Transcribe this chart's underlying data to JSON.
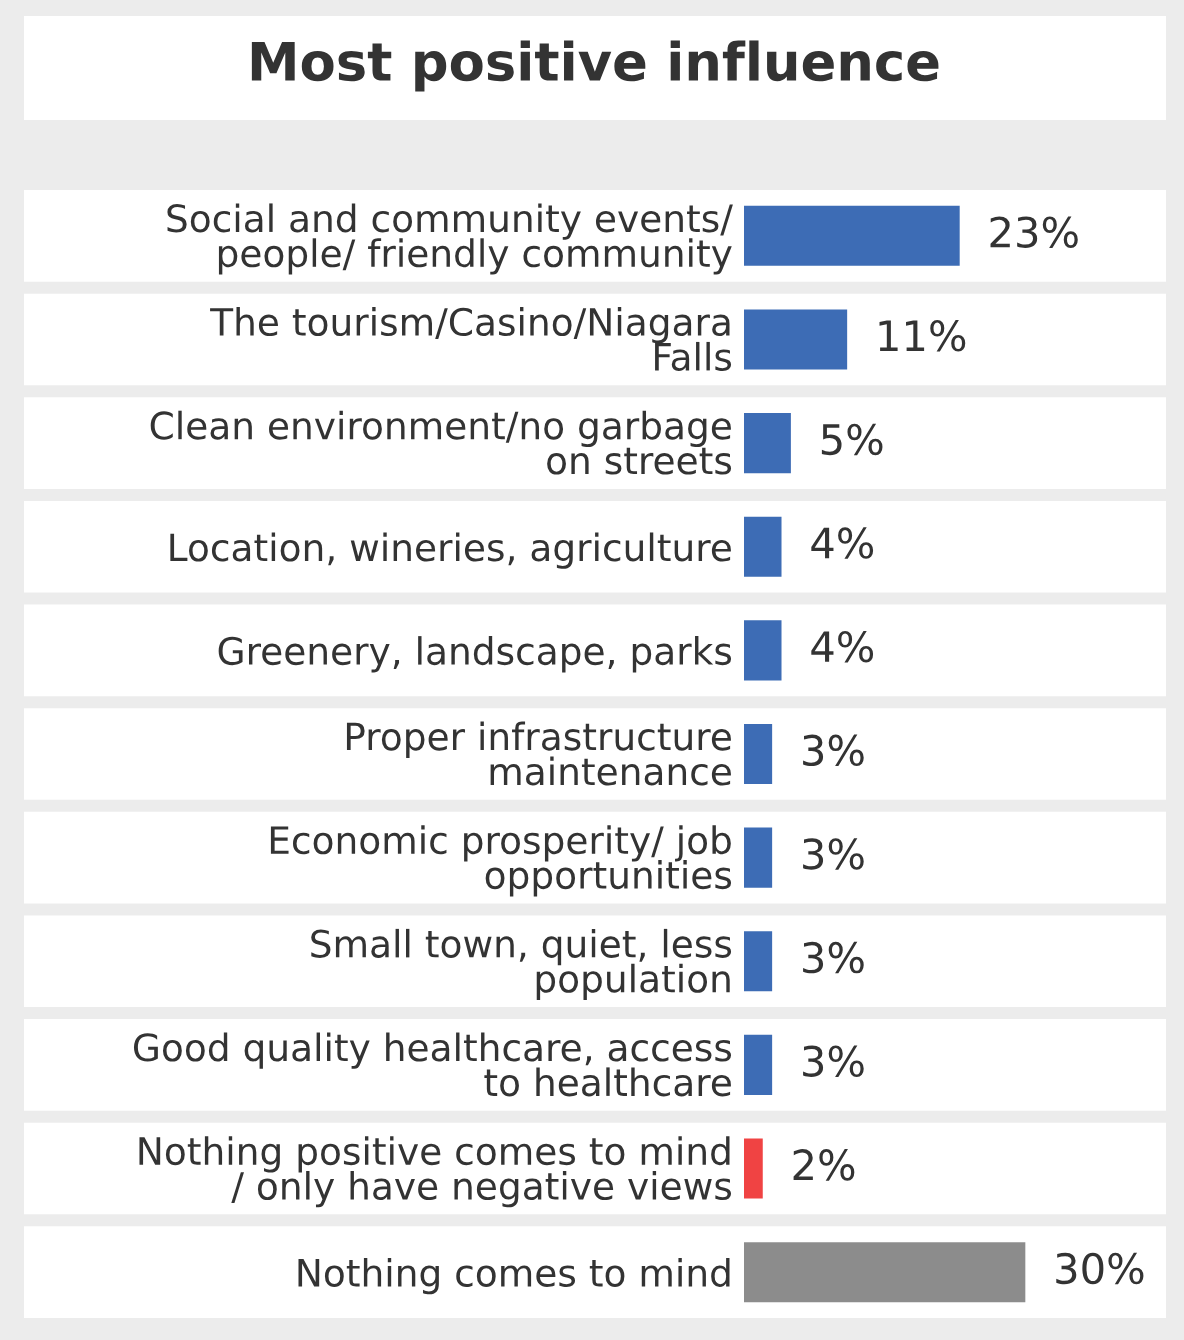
{
  "chart_data": {
    "type": "bar",
    "orientation": "horizontal",
    "title": "Most positive influence",
    "categories": [
      "Social and community events/\npeople/ friendly community",
      "The tourism/Casino/Niagara\nFalls",
      "Clean environment/no garbage\non streets",
      "Location, wineries, agriculture",
      "Greenery, landscape, parks",
      "Proper infrastructure\nmaintenance",
      "Economic prosperity/ job\nopportunities",
      "Small town, quiet, less\npopulation",
      "Good quality healthcare, access\nto healthcare",
      "Nothing positive comes to mind\n/ only have negative views",
      "Nothing comes to mind"
    ],
    "values": [
      23,
      11,
      5,
      4,
      4,
      3,
      3,
      3,
      3,
      2,
      30
    ],
    "colors": [
      "#3d6cb5",
      "#3d6cb5",
      "#3d6cb5",
      "#3d6cb5",
      "#3d6cb5",
      "#3d6cb5",
      "#3d6cb5",
      "#3d6cb5",
      "#3d6cb5",
      "#f04343",
      "#8c8c8c"
    ],
    "value_labels": [
      "23%",
      "11%",
      "5%",
      "4%",
      "4%",
      "3%",
      "3%",
      "3%",
      "3%",
      "2%",
      "30%"
    ],
    "grid": false,
    "legend": false
  }
}
